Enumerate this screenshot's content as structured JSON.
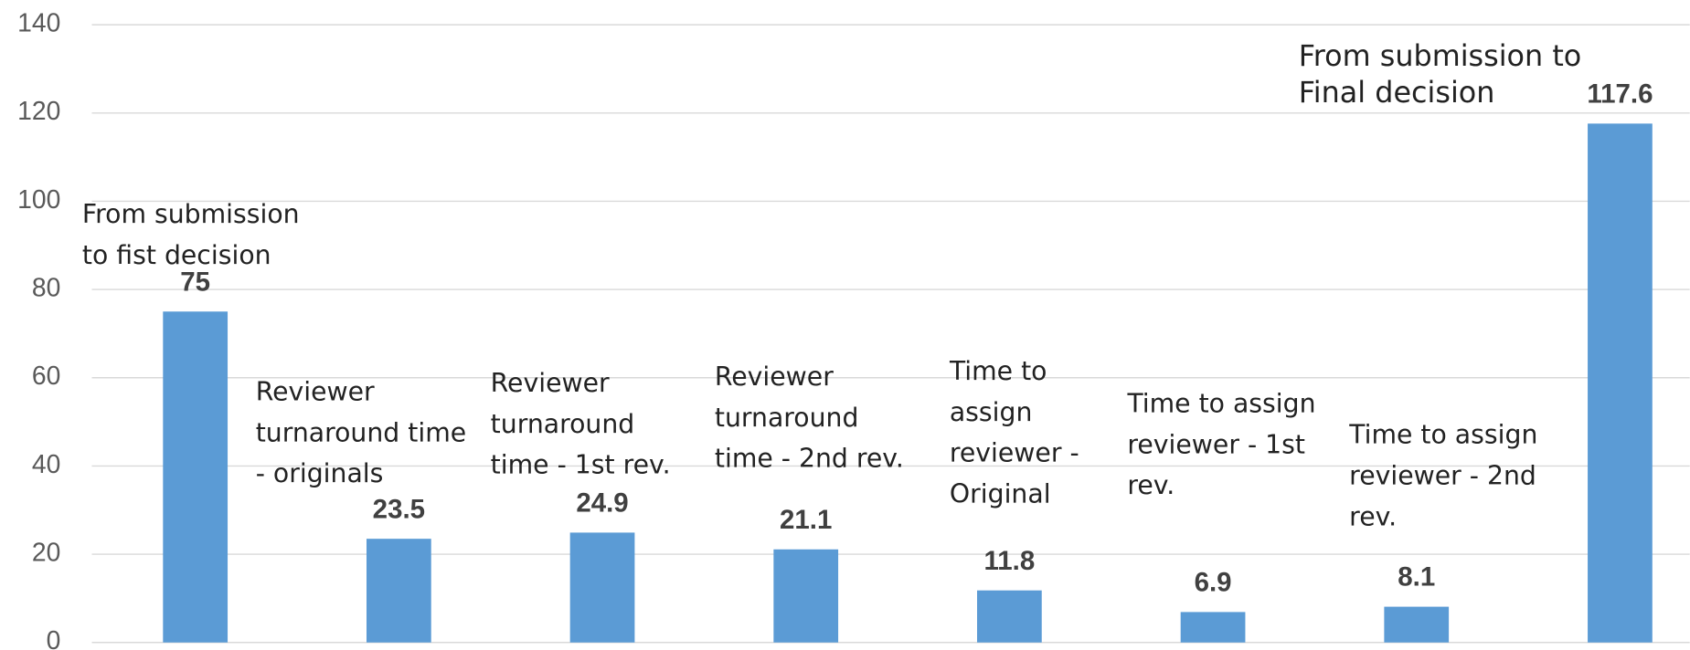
{
  "chart_data": {
    "type": "bar",
    "categories": [
      "From submission to fist decision",
      "Reviewer turnaround time - originals",
      "Reviewer turnaround time - 1st rev.",
      "Reviewer turnaround time - 2nd rev.",
      "Time to assign reviewer - Original",
      "Time to assign reviewer - 1st rev.",
      "Time to assign reviewer - 2nd rev.",
      "From submission to Final decision"
    ],
    "values": [
      75,
      23.5,
      24.9,
      21.1,
      11.8,
      6.9,
      8.1,
      117.6
    ],
    "color": "#5b9bd5",
    "ylim": [
      0,
      140
    ],
    "yticks": [
      0,
      20,
      40,
      60,
      80,
      100,
      120,
      140
    ],
    "grid": true
  }
}
